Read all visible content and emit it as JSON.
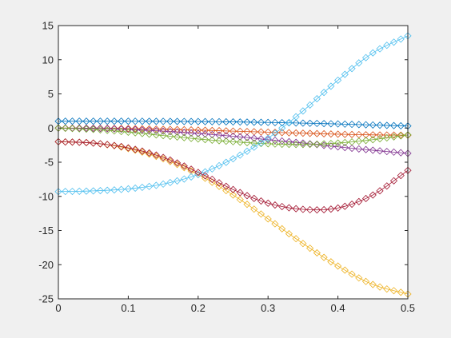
{
  "chart_data": {
    "type": "line",
    "title": "",
    "xlabel": "",
    "ylabel": "",
    "xlim": [
      0,
      0.5
    ],
    "ylim": [
      -25,
      15
    ],
    "x_ticks": [
      0,
      0.1,
      0.2,
      0.3,
      0.4,
      0.5
    ],
    "x_tick_labels": [
      "0",
      "0.1",
      "0.2",
      "0.3",
      "0.4",
      "0.5"
    ],
    "y_ticks": [
      -25,
      -20,
      -15,
      -10,
      -5,
      0,
      5,
      10,
      15
    ],
    "y_tick_labels": [
      "-25",
      "-20",
      "-15",
      "-10",
      "-5",
      "0",
      "5",
      "10",
      "15"
    ],
    "grid": false,
    "marker": "diamond",
    "series": [
      {
        "color": "#0072BD",
        "x": [
          0,
          0.05,
          0.1,
          0.15,
          0.2,
          0.25,
          0.3,
          0.35,
          0.4,
          0.45,
          0.5
        ],
        "y": [
          1.0,
          1.0,
          1.0,
          0.98,
          0.95,
          0.9,
          0.82,
          0.72,
          0.6,
          0.45,
          0.3
        ]
      },
      {
        "color": "#D95319",
        "x": [
          0,
          0.05,
          0.1,
          0.15,
          0.2,
          0.25,
          0.3,
          0.35,
          0.4,
          0.45,
          0.5
        ],
        "y": [
          0.0,
          -0.02,
          -0.08,
          -0.18,
          -0.3,
          -0.45,
          -0.6,
          -0.75,
          -0.9,
          -1.0,
          -1.05
        ]
      },
      {
        "color": "#EDB120",
        "x": [
          0,
          0.05,
          0.1,
          0.15,
          0.2,
          0.25,
          0.3,
          0.35,
          0.4,
          0.45,
          0.5
        ],
        "y": [
          -2.0,
          -2.2,
          -3.0,
          -4.5,
          -6.8,
          -9.8,
          -13.3,
          -16.9,
          -20.2,
          -22.9,
          -24.3
        ]
      },
      {
        "color": "#7E2F8E",
        "x": [
          0,
          0.05,
          0.1,
          0.15,
          0.2,
          0.25,
          0.3,
          0.35,
          0.4,
          0.45,
          0.5
        ],
        "y": [
          0.0,
          -0.05,
          -0.2,
          -0.45,
          -0.8,
          -1.2,
          -1.7,
          -2.2,
          -2.75,
          -3.25,
          -3.7
        ]
      },
      {
        "color": "#77AC30",
        "x": [
          0,
          0.05,
          0.1,
          0.15,
          0.2,
          0.25,
          0.3,
          0.35,
          0.4,
          0.45,
          0.5
        ],
        "y": [
          0.0,
          -0.2,
          -0.6,
          -1.1,
          -1.6,
          -2.0,
          -2.3,
          -2.4,
          -2.2,
          -1.7,
          -1.0
        ]
      },
      {
        "color": "#4DBEEE",
        "x": [
          0,
          0.05,
          0.1,
          0.15,
          0.2,
          0.25,
          0.3,
          0.35,
          0.4,
          0.45,
          0.5
        ],
        "y": [
          -9.3,
          -9.2,
          -8.9,
          -8.2,
          -6.8,
          -4.5,
          -1.5,
          2.5,
          7.0,
          11.0,
          13.5
        ]
      },
      {
        "color": "#A2142F",
        "x": [
          0,
          0.05,
          0.1,
          0.15,
          0.2,
          0.25,
          0.3,
          0.35,
          0.4,
          0.45,
          0.5
        ],
        "y": [
          -2.0,
          -2.2,
          -2.9,
          -4.3,
          -6.5,
          -9.0,
          -11.0,
          -11.9,
          -11.7,
          -9.8,
          -6.2
        ]
      }
    ]
  }
}
